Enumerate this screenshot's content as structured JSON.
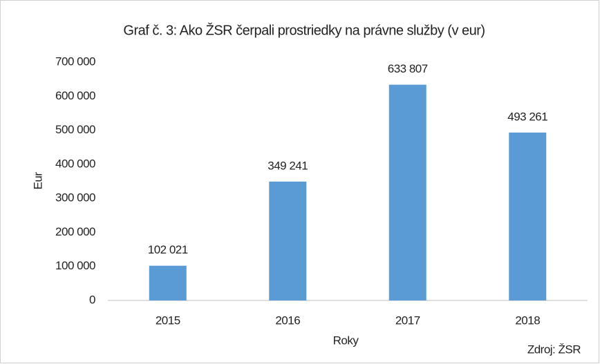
{
  "chart_data": {
    "type": "bar",
    "title": "Graf č. 3: Ako ŽSR čerpali prostriedky  na právne služby  (v eur)",
    "x_label": "Roky",
    "y_label": "Eur",
    "source": "Zdroj: ŽSR",
    "categories": [
      "2015",
      "2016",
      "2017",
      "2018"
    ],
    "values": [
      102021,
      349241,
      633807,
      493261
    ],
    "value_labels": [
      "102 021",
      "349 241",
      "633 807",
      "493 261"
    ],
    "color": "#5b9bd5",
    "ylim": [
      0,
      700000
    ],
    "yticks": [
      0,
      {
        "value": 100000,
        "label": "100 000"
      },
      {
        "value": 200000,
        "label": "200 000"
      },
      {
        "value": 300000,
        "label": "300 000"
      },
      {
        "value": 400000,
        "label": "400 000"
      },
      {
        "value": 500000,
        "label": "500 000"
      },
      {
        "value": 600000,
        "label": "600 000"
      },
      {
        "value": 700000,
        "label": "700 000"
      }
    ],
    "grid": false
  }
}
